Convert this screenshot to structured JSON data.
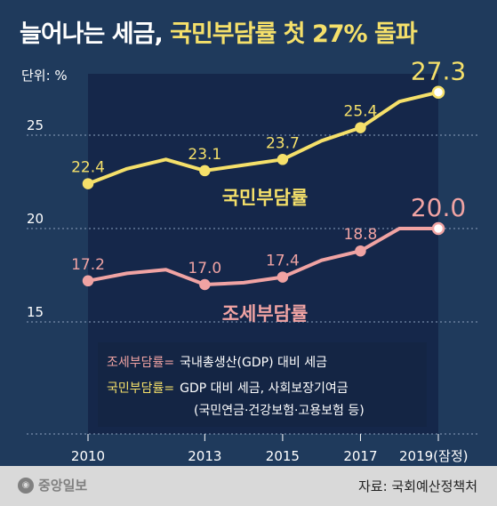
{
  "header": {
    "title_prefix": "늘어나는 세금,",
    "title_highlight": "국민부담률 첫 27% 돌파",
    "unit": "단위: %"
  },
  "footer": {
    "logo": "중앙일보",
    "source": "자료: 국회예산정책처"
  },
  "colors": {
    "background": "#1f3a5c",
    "plot_area": "#15274a",
    "yellow": "#f5e06a",
    "pink": "#f0a3a3",
    "footer": "#d9d9d9"
  },
  "chart_data": {
    "type": "line",
    "x": [
      2010,
      2011,
      2012,
      2013,
      2014,
      2015,
      2016,
      2017,
      2018,
      2019
    ],
    "xticks": [
      "2010",
      "2013",
      "2015",
      "2017",
      "2019(잠정)"
    ],
    "yticks": [
      15,
      20,
      25
    ],
    "ylim": [
      14,
      28
    ],
    "grid": true,
    "series": [
      {
        "name": "국민부담률",
        "color": "#f5e06a",
        "values": [
          22.4,
          23.2,
          23.7,
          23.1,
          23.4,
          23.7,
          24.7,
          25.4,
          26.8,
          27.3
        ],
        "labels": [
          {
            "index": 0,
            "text": "22.4"
          },
          {
            "index": 3,
            "text": "23.1"
          },
          {
            "index": 5,
            "text": "23.7"
          },
          {
            "index": 7,
            "text": "25.4"
          },
          {
            "index": 9,
            "text": "27.3"
          }
        ]
      },
      {
        "name": "조세부담률",
        "color": "#f0a3a3",
        "values": [
          17.2,
          17.6,
          17.8,
          17.0,
          17.1,
          17.4,
          18.3,
          18.8,
          20.0,
          20.0
        ],
        "labels": [
          {
            "index": 0,
            "text": "17.2"
          },
          {
            "index": 3,
            "text": "17.0"
          },
          {
            "index": 5,
            "text": "17.4"
          },
          {
            "index": 7,
            "text": "18.8"
          },
          {
            "index": 9,
            "text": "20.0"
          }
        ]
      }
    ],
    "legend": [
      {
        "term": "조세부담률=",
        "desc": "국내총생산(GDP) 대비 세금",
        "color": "#f0a3a3"
      },
      {
        "term": "국민부담률=",
        "desc": "GDP 대비 세금, 사회보장기여금",
        "desc2": "(국민연금·건강보험·고용보험 등)",
        "color": "#f5e06a"
      }
    ]
  }
}
